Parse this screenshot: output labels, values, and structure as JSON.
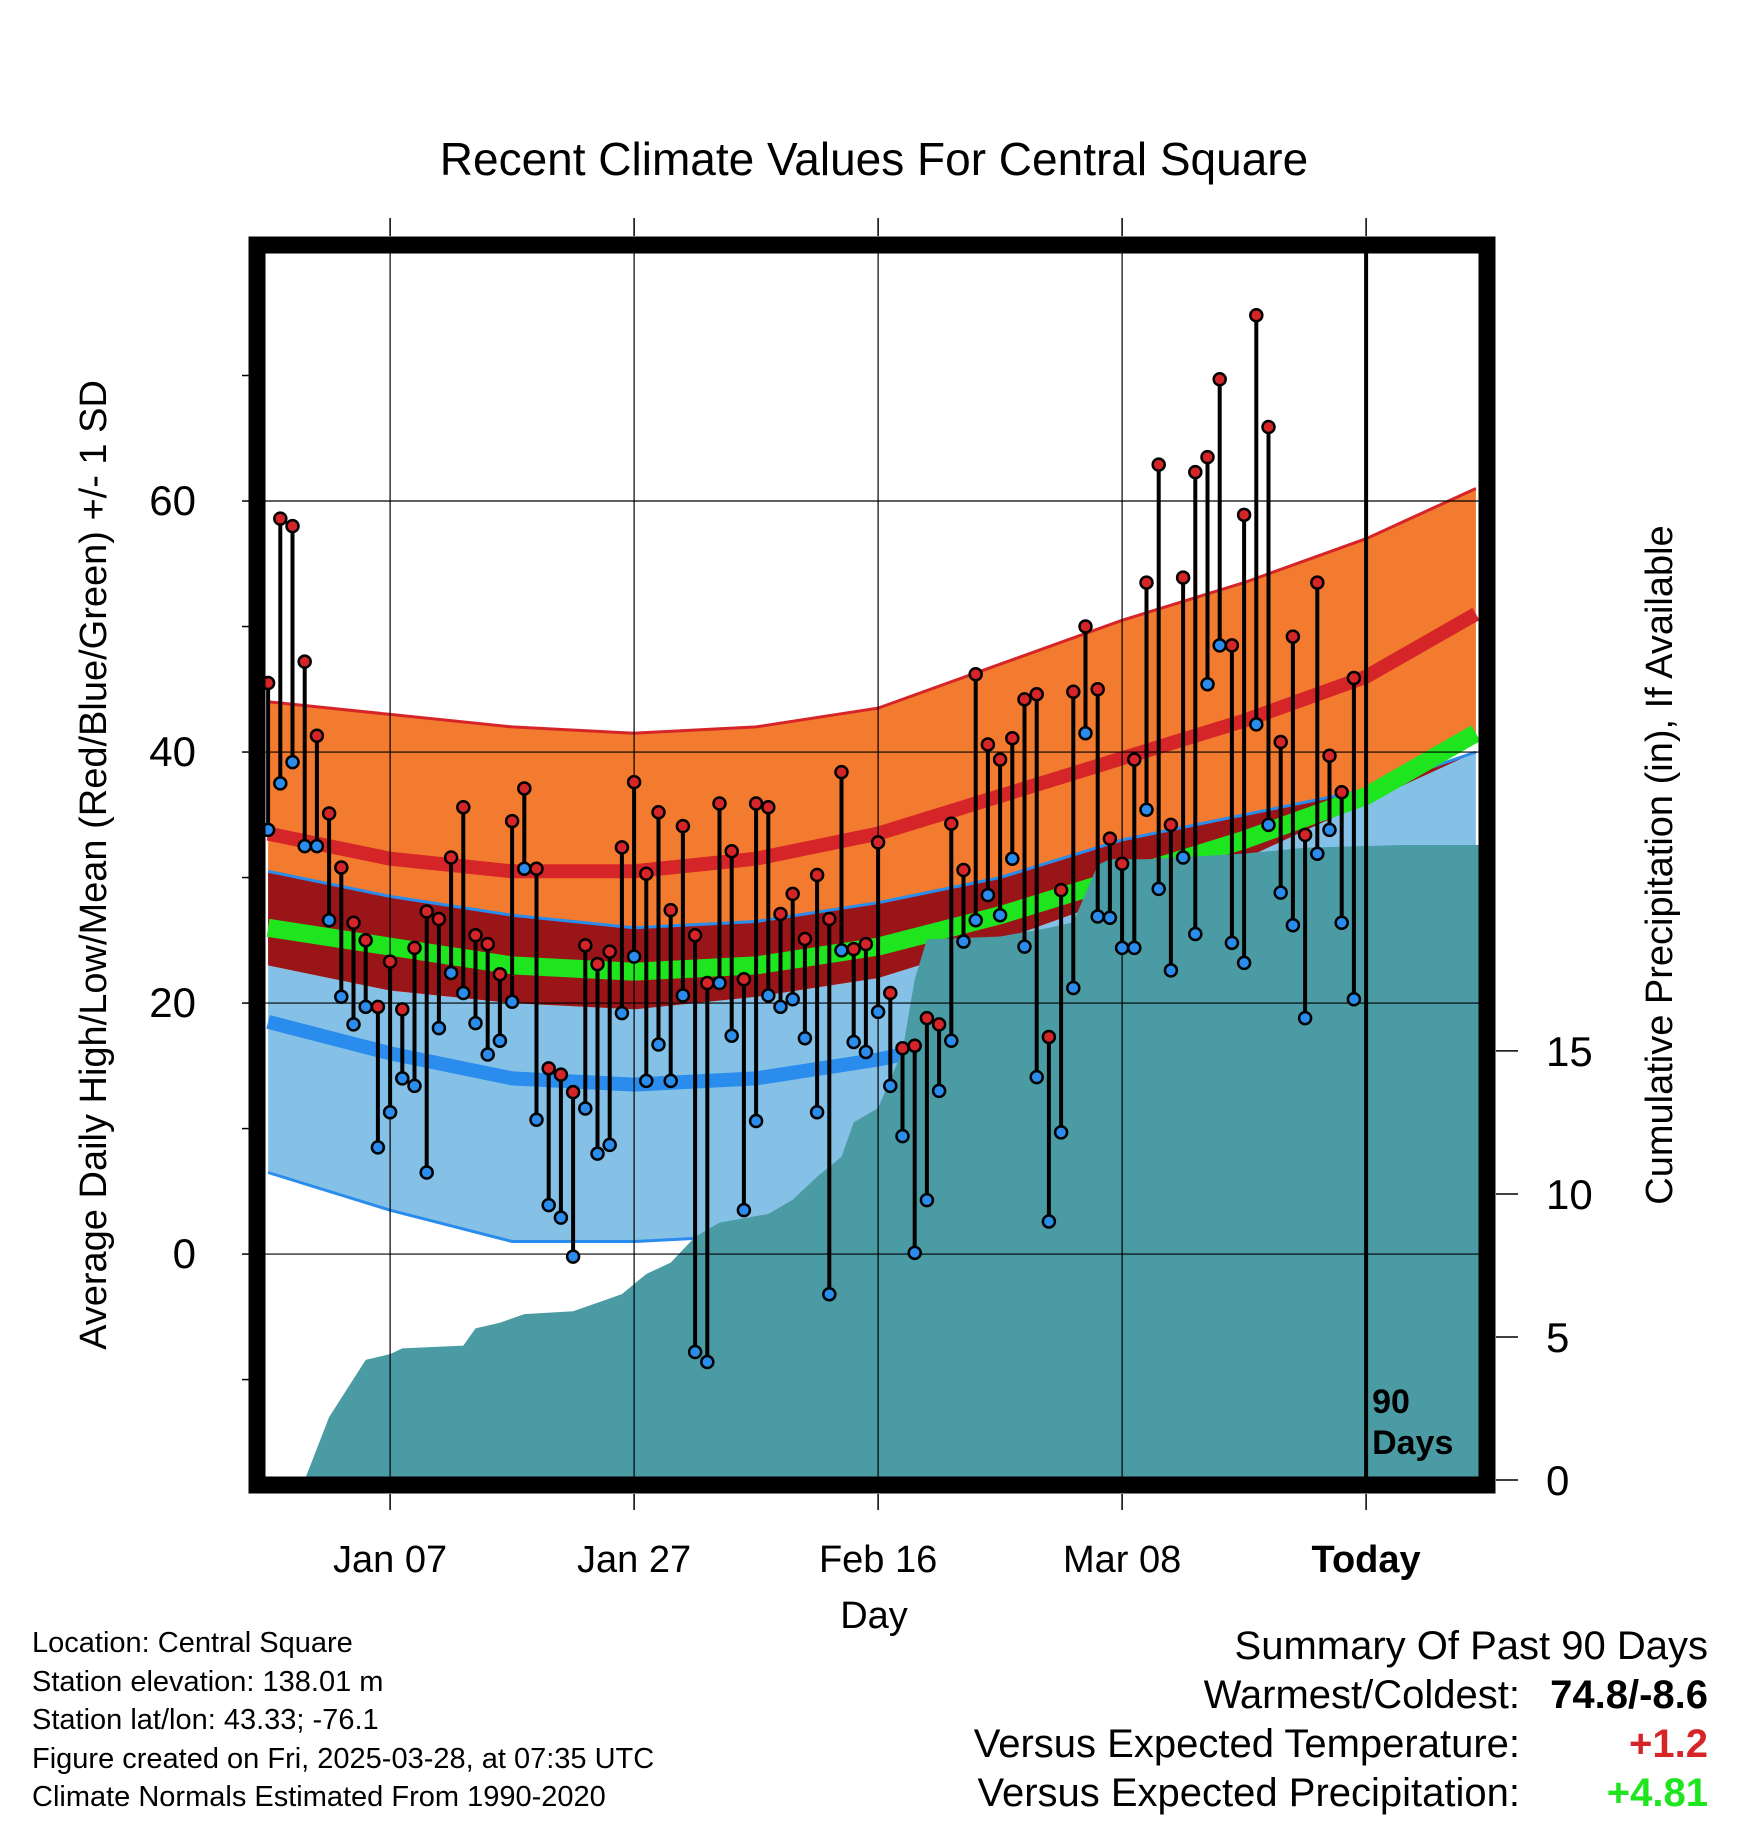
{
  "colors": {
    "high_band": "#f27b2f",
    "high_band_edge": "#d62528",
    "overlap_band": "#9a1518",
    "low_band": "#85c1e6",
    "low_band_edge": "#2a8cec",
    "mean_line": "#1ee51e",
    "precip_area": "#4a9ba4",
    "high_dot": "#d62528",
    "low_dot": "#2a8cec",
    "positive_temp": "#d62528",
    "positive_precip": "#1ee51e"
  },
  "chart_data": {
    "type": "line",
    "title": "Recent Climate Values For Central Square",
    "xlabel": "Day",
    "ylabel": "Average Daily High/Low/Mean (Red/Blue/Green) +/- 1 SD",
    "y2label": "Cumulative Precipitation (in), If Available",
    "xlim": [
      -10.5,
      89.5
    ],
    "ylim": [
      -18,
      80
    ],
    "y2lim": [
      0,
      43
    ],
    "x_ticks": [
      {
        "x": 0,
        "label": "Jan 07"
      },
      {
        "x": 20,
        "label": "Jan 27"
      },
      {
        "x": 40,
        "label": "Feb 16"
      },
      {
        "x": 60,
        "label": "Mar 08"
      },
      {
        "x": 80,
        "label": "Today"
      }
    ],
    "y_ticks": [
      0,
      20,
      40,
      60
    ],
    "y_minor_ticks": [
      -10,
      10,
      30,
      50,
      70
    ],
    "y2_ticks": [
      0,
      5,
      10,
      15
    ],
    "grid": true,
    "today_marker": {
      "x": 80,
      "label_line1": "90",
      "label_line2": "Days"
    },
    "normal_x": [
      -10,
      0,
      10,
      20,
      30,
      40,
      50,
      60,
      70,
      80,
      89
    ],
    "normal_high": [
      33.5,
      31.5,
      30.5,
      30.5,
      31.5,
      33.5,
      36.5,
      39.5,
      42.5,
      46,
      51
    ],
    "normal_high_plus_sd": [
      44,
      43,
      42,
      41.5,
      42,
      43.5,
      47,
      50.5,
      53.5,
      57,
      61
    ],
    "normal_high_minus_sd": [
      23,
      21,
      20,
      19.5,
      20.5,
      22,
      25,
      28.5,
      31.5,
      36,
      41
    ],
    "normal_mean": [
      26,
      24.5,
      23,
      22.5,
      23,
      24.5,
      27,
      30,
      33,
      36.5,
      41.5
    ],
    "normal_low": [
      18.5,
      16,
      14,
      13.5,
      14,
      15.5,
      17.5,
      20.5,
      23.5,
      27.5,
      32
    ],
    "normal_low_plus_sd": [
      30.5,
      28.5,
      27,
      26,
      26.5,
      28,
      30,
      33,
      35,
      37,
      40
    ],
    "normal_low_minus_sd": [
      6.5,
      3.5,
      1,
      1,
      1.5,
      3.5,
      6,
      10,
      14,
      19,
      24
    ],
    "precip": [
      [
        -7,
        0
      ],
      [
        -5,
        2.2
      ],
      [
        -2,
        4.2
      ],
      [
        0,
        4.4
      ],
      [
        1,
        4.6
      ],
      [
        6,
        4.7
      ],
      [
        7,
        5.3
      ],
      [
        9,
        5.5
      ],
      [
        11,
        5.8
      ],
      [
        15,
        5.9
      ],
      [
        17,
        6.2
      ],
      [
        19,
        6.5
      ],
      [
        21,
        7.2
      ],
      [
        23,
        7.6
      ],
      [
        25,
        8.5
      ],
      [
        27,
        9.0
      ],
      [
        31,
        9.3
      ],
      [
        33,
        9.8
      ],
      [
        35,
        10.6
      ],
      [
        37,
        11.3
      ],
      [
        38,
        12.5
      ],
      [
        40,
        13.0
      ],
      [
        41,
        14.0
      ],
      [
        42,
        15.0
      ],
      [
        43,
        17.5
      ],
      [
        44,
        18.9
      ],
      [
        50,
        19.0
      ],
      [
        54,
        19.3
      ],
      [
        56,
        19.5
      ],
      [
        58,
        21.5
      ],
      [
        59,
        21.7
      ],
      [
        62,
        21.7
      ],
      [
        70,
        21.9
      ],
      [
        75,
        22.1
      ],
      [
        83,
        22.2
      ],
      [
        89,
        22.2
      ]
    ],
    "days": [
      {
        "x": -10,
        "high": 45.5,
        "low": 33.8
      },
      {
        "x": -9,
        "high": 58.6,
        "low": 37.5
      },
      {
        "x": -8,
        "high": 58.0,
        "low": 39.2
      },
      {
        "x": -7,
        "high": 47.2,
        "low": 32.5
      },
      {
        "x": -6,
        "high": 41.3,
        "low": 32.5
      },
      {
        "x": -5,
        "high": 35.1,
        "low": 26.6
      },
      {
        "x": -4,
        "high": 30.8,
        "low": 20.5
      },
      {
        "x": -3,
        "high": 26.4,
        "low": 18.3
      },
      {
        "x": -2,
        "high": 25.0,
        "low": 19.7
      },
      {
        "x": -1,
        "high": 19.7,
        "low": 8.5
      },
      {
        "x": 0,
        "high": 23.3,
        "low": 11.3
      },
      {
        "x": 1,
        "high": 19.5,
        "low": 14.0
      },
      {
        "x": 2,
        "high": 24.4,
        "low": 13.4
      },
      {
        "x": 3,
        "high": 27.3,
        "low": 6.5
      },
      {
        "x": 4,
        "high": 26.7,
        "low": 18.0
      },
      {
        "x": 5,
        "high": 31.6,
        "low": 22.4
      },
      {
        "x": 6,
        "high": 35.6,
        "low": 20.8
      },
      {
        "x": 7,
        "high": 25.4,
        "low": 18.4
      },
      {
        "x": 8,
        "high": 24.7,
        "low": 15.9
      },
      {
        "x": 9,
        "high": 22.3,
        "low": 17.0
      },
      {
        "x": 10,
        "high": 34.5,
        "low": 20.1
      },
      {
        "x": 11,
        "high": 37.1,
        "low": 30.7
      },
      {
        "x": 12,
        "high": 30.7,
        "low": 10.7
      },
      {
        "x": 13,
        "high": 14.8,
        "low": 3.9
      },
      {
        "x": 14,
        "high": 14.3,
        "low": 2.9
      },
      {
        "x": 15,
        "high": 12.9,
        "low": -0.2
      },
      {
        "x": 16,
        "high": 24.6,
        "low": 11.6
      },
      {
        "x": 17,
        "high": 23.1,
        "low": 8.0
      },
      {
        "x": 18,
        "high": 24.1,
        "low": 8.7
      },
      {
        "x": 19,
        "high": 32.4,
        "low": 19.2
      },
      {
        "x": 20,
        "high": 37.6,
        "low": 23.7
      },
      {
        "x": 21,
        "high": 30.3,
        "low": 13.8
      },
      {
        "x": 22,
        "high": 35.2,
        "low": 16.7
      },
      {
        "x": 23,
        "high": 27.4,
        "low": 13.8
      },
      {
        "x": 24,
        "high": 34.1,
        "low": 20.6
      },
      {
        "x": 25,
        "high": 25.4,
        "low": -7.8
      },
      {
        "x": 26,
        "high": 21.6,
        "low": -8.6
      },
      {
        "x": 27,
        "high": 35.9,
        "low": 21.6
      },
      {
        "x": 28,
        "high": 32.1,
        "low": 17.4
      },
      {
        "x": 29,
        "high": 21.9,
        "low": 3.5
      },
      {
        "x": 30,
        "high": 35.9,
        "low": 10.6
      },
      {
        "x": 31,
        "high": 35.6,
        "low": 20.6
      },
      {
        "x": 32,
        "high": 27.1,
        "low": 19.7
      },
      {
        "x": 33,
        "high": 28.7,
        "low": 20.3
      },
      {
        "x": 34,
        "high": 25.1,
        "low": 17.2
      },
      {
        "x": 35,
        "high": 30.2,
        "low": 11.3
      },
      {
        "x": 36,
        "high": 26.7,
        "low": -3.2
      },
      {
        "x": 37,
        "high": 38.4,
        "low": 24.2
      },
      {
        "x": 38,
        "high": 24.3,
        "low": 16.9
      },
      {
        "x": 39,
        "high": 24.7,
        "low": 16.1
      },
      {
        "x": 40,
        "high": 32.8,
        "low": 19.3
      },
      {
        "x": 41,
        "high": 20.8,
        "low": 13.4
      },
      {
        "x": 42,
        "high": 16.4,
        "low": 9.4
      },
      {
        "x": 43,
        "high": 16.6,
        "low": 0.1
      },
      {
        "x": 44,
        "high": 18.8,
        "low": 4.3
      },
      {
        "x": 45,
        "high": 18.3,
        "low": 13.0
      },
      {
        "x": 46,
        "high": 34.3,
        "low": 17.0
      },
      {
        "x": 47,
        "high": 30.6,
        "low": 24.9
      },
      {
        "x": 48,
        "high": 46.2,
        "low": 26.6
      },
      {
        "x": 49,
        "high": 40.6,
        "low": 28.6
      },
      {
        "x": 50,
        "high": 39.4,
        "low": 27.0
      },
      {
        "x": 51,
        "high": 41.1,
        "low": 31.5
      },
      {
        "x": 52,
        "high": 44.2,
        "low": 24.5
      },
      {
        "x": 53,
        "high": 44.6,
        "low": 14.1
      },
      {
        "x": 54,
        "high": 17.3,
        "low": 2.6
      },
      {
        "x": 55,
        "high": 29.0,
        "low": 9.7
      },
      {
        "x": 56,
        "high": 44.8,
        "low": 21.2
      },
      {
        "x": 57,
        "high": 50.0,
        "low": 41.5
      },
      {
        "x": 58,
        "high": 45.0,
        "low": 26.9
      },
      {
        "x": 59,
        "high": 33.1,
        "low": 26.8
      },
      {
        "x": 60,
        "high": 31.1,
        "low": 24.4
      },
      {
        "x": 61,
        "high": 39.4,
        "low": 24.4
      },
      {
        "x": 62,
        "high": 53.5,
        "low": 35.4
      },
      {
        "x": 63,
        "high": 62.9,
        "low": 29.1
      },
      {
        "x": 64,
        "high": 34.2,
        "low": 22.6
      },
      {
        "x": 65,
        "high": 53.9,
        "low": 31.6
      },
      {
        "x": 66,
        "high": 62.3,
        "low": 25.5
      },
      {
        "x": 67,
        "high": 63.5,
        "low": 45.4
      },
      {
        "x": 68,
        "high": 69.7,
        "low": 48.5
      },
      {
        "x": 69,
        "high": 48.5,
        "low": 24.8
      },
      {
        "x": 70,
        "high": 58.9,
        "low": 23.2
      },
      {
        "x": 71,
        "high": 74.8,
        "low": 42.2
      },
      {
        "x": 72,
        "high": 65.9,
        "low": 34.2
      },
      {
        "x": 73,
        "high": 40.8,
        "low": 28.8
      },
      {
        "x": 74,
        "high": 49.2,
        "low": 26.2
      },
      {
        "x": 75,
        "high": 33.4,
        "low": 18.8
      },
      {
        "x": 76,
        "high": 53.5,
        "low": 31.9
      },
      {
        "x": 77,
        "high": 39.7,
        "low": 33.8
      },
      {
        "x": 78,
        "high": 36.8,
        "low": 26.4
      },
      {
        "x": 79,
        "high": 45.9,
        "low": 20.3
      }
    ]
  },
  "location": {
    "line1": "Location: Central Square",
    "line2": "Station elevation: 138.01 m",
    "line3": "Station lat/lon: 43.33; -76.1",
    "line4": "Figure created on Fri, 2025-03-28, at 07:35 UTC",
    "line5": "Climate Normals Estimated From 1990-2020"
  },
  "summary": {
    "title": "Summary Of Past 90 Days",
    "warmest_coldest_label": "Warmest/Coldest:",
    "warmest_coldest_value": "74.8/-8.6",
    "temp_label": "Versus Expected Temperature:",
    "temp_value": "+1.2",
    "precip_label": "Versus Expected Precipitation:",
    "precip_value": "+4.81"
  }
}
